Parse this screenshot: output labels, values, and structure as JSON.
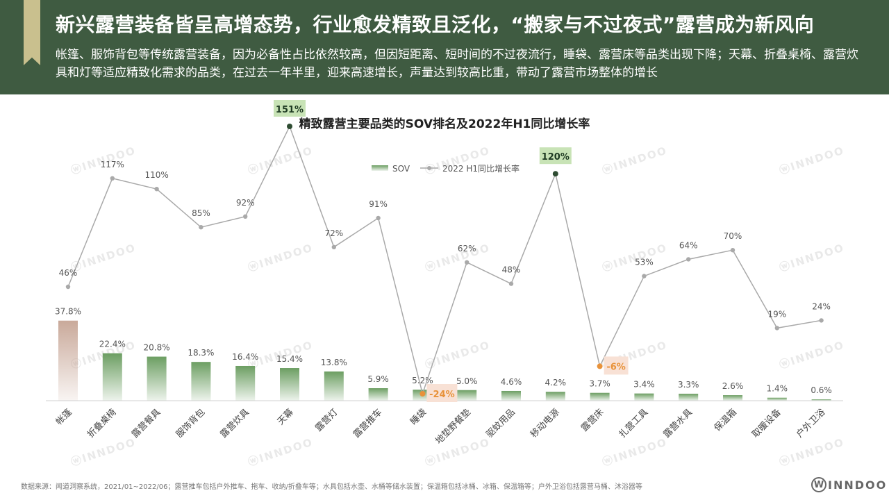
{
  "header": {
    "title": "新兴露营装备皆呈高增态势，行业愈发精致且泛化，“搬家与不过夜式”露营成为新风向",
    "subtitle": "帐篷、服饰背包等传统露营装备，因为必备性占比依然较高，但因短距离、短时间的不过夜流行，睡袋、露营床等品类出现下降；天幕、折叠桌椅、露营炊具和灯等适应精致化需求的品类，在过去一年半里，迎来高速增长，声量达到较高比重，带动了露营市场整体的增长"
  },
  "chart_data": {
    "type": "bar+line",
    "title": "精致露营主要品类的SOV排名及2022年H1同比增长率",
    "categories": [
      "帐篷",
      "折叠桌椅",
      "露营餐具",
      "服饰背包",
      "露营炊具",
      "天幕",
      "露营灯",
      "露营推车",
      "睡袋",
      "地垫野餐垫",
      "驱蚊用品",
      "移动电源",
      "露营床",
      "扎营工具",
      "露营水具",
      "保温箱",
      "取暖设备",
      "户外卫浴"
    ],
    "series": [
      {
        "name": "SOV",
        "type": "bar",
        "unit": "%",
        "values": [
          37.8,
          22.4,
          20.8,
          18.3,
          16.4,
          15.4,
          13.8,
          5.9,
          5.2,
          5.0,
          4.6,
          4.2,
          3.7,
          3.4,
          3.3,
          2.6,
          1.4,
          0.6
        ],
        "labels": [
          "37.8%",
          "22.4%",
          "20.8%",
          "18.3%",
          "16.4%",
          "15.4%",
          "13.8%",
          "5.9%",
          "5.2%",
          "5.0%",
          "4.6%",
          "4.2%",
          "3.7%",
          "3.4%",
          "3.3%",
          "2.6%",
          "1.4%",
          "0.6%"
        ]
      },
      {
        "name": "2022 H1同比增长率",
        "type": "line",
        "unit": "%",
        "values": [
          46,
          117,
          110,
          85,
          92,
          151,
          72,
          91,
          -24,
          62,
          48,
          120,
          -6,
          53,
          64,
          70,
          19,
          24
        ],
        "labels": [
          "46%",
          "117%",
          "110%",
          "85%",
          "92%",
          "151%",
          "72%",
          "91%",
          "-24%",
          "62%",
          "48%",
          "120%",
          "-6%",
          "53%",
          "64%",
          "70%",
          "19%",
          "24%"
        ]
      }
    ],
    "highlights": {
      "max_growth": [
        5,
        11
      ],
      "negative_growth": [
        8,
        12
      ]
    },
    "legend_position": "top-center",
    "grid": false
  },
  "colors": {
    "header_bg": "#3f5b41",
    "bar_green": "#6c9e62",
    "bar_first": "#c9a99a",
    "line": "#a9a9a9",
    "highlight_positive_bg": "#c8e3b6",
    "highlight_negative_bg": "#f8e1d5",
    "highlight_negative_text": "#e8923a",
    "highlight_positive_dot": "#2e4c32"
  },
  "footer": {
    "source": "数据来源：闻道洞察系统，2021/01~2022/06；露营推车包括户外推车、拖车、收纳/折叠车等；水具包括水壶、水桶等储水装置；保温箱包括冰桶、冰箱、保温箱等；户外卫浴包括露营马桶、沐浴器等",
    "brand": "INNDOO",
    "brand_mark": "W"
  },
  "watermark": "INNDOO"
}
